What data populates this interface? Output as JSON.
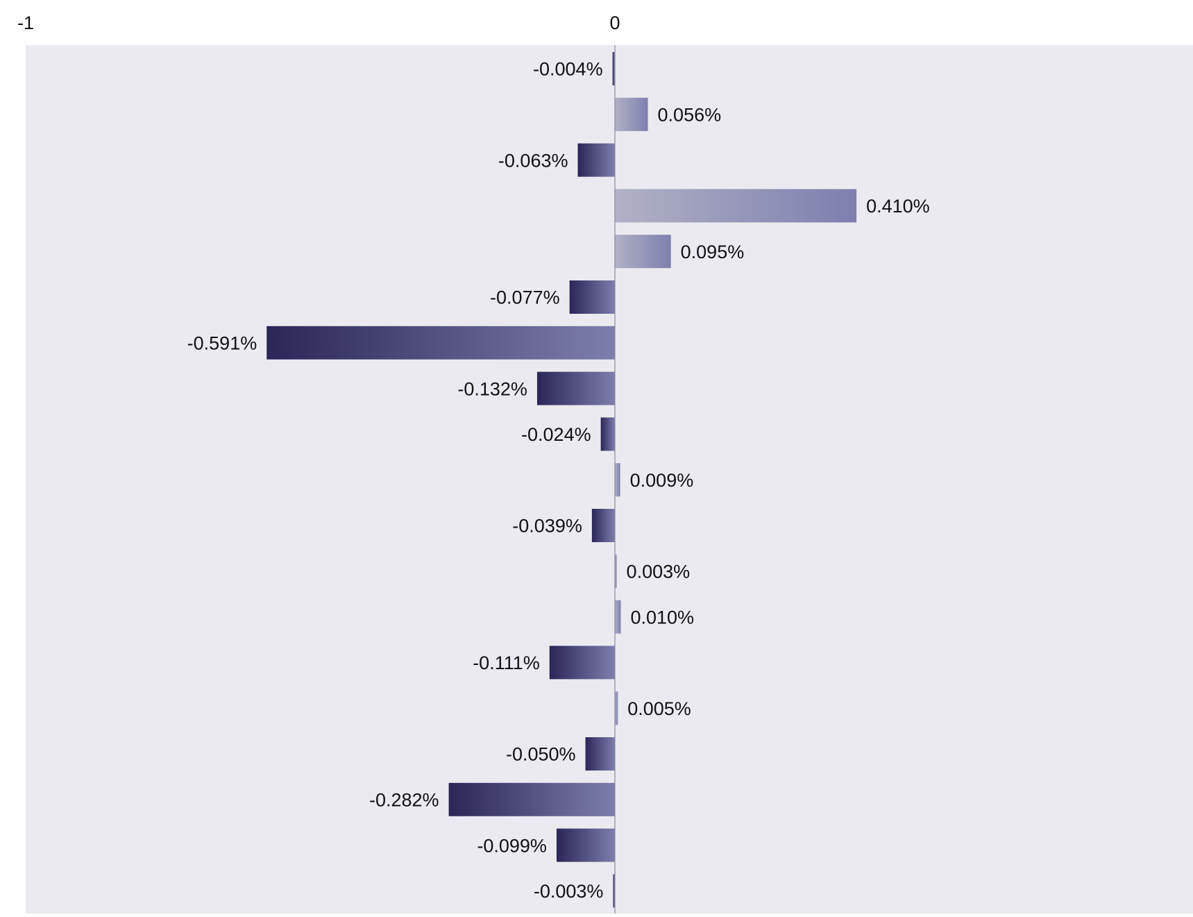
{
  "chart_data": {
    "type": "bar",
    "orientation": "horizontal",
    "xlim": [
      -1,
      1
    ],
    "x_ticks": [
      -1,
      0
    ],
    "x_tick_labels": [
      "-1",
      "0"
    ],
    "x_axis_position": "top",
    "values": [
      -0.004,
      0.056,
      -0.063,
      0.41,
      0.095,
      -0.077,
      -0.591,
      -0.132,
      -0.024,
      0.009,
      -0.039,
      0.003,
      0.01,
      -0.111,
      0.005,
      -0.05,
      -0.282,
      -0.099,
      -0.003
    ],
    "value_labels": [
      "-0.004%",
      "0.056%",
      "-0.063%",
      "0.410%",
      "0.095%",
      "-0.077%",
      "-0.591%",
      "-0.132%",
      "-0.024%",
      "0.009%",
      "-0.039%",
      "0.003%",
      "0.010%",
      "-0.111%",
      "0.005%",
      "-0.050%",
      "-0.282%",
      "-0.099%",
      "-0.003%"
    ],
    "grid": false,
    "legend": "none"
  },
  "colors": {
    "plot_background": "#ebeaf0",
    "negative_dark": "#2a2658",
    "negative_light": "#7e7eac",
    "positive_light": "#b1b1c6",
    "positive_dark": "#7e7fae",
    "zero_line": "#8a8a9a",
    "text": "#111111"
  }
}
